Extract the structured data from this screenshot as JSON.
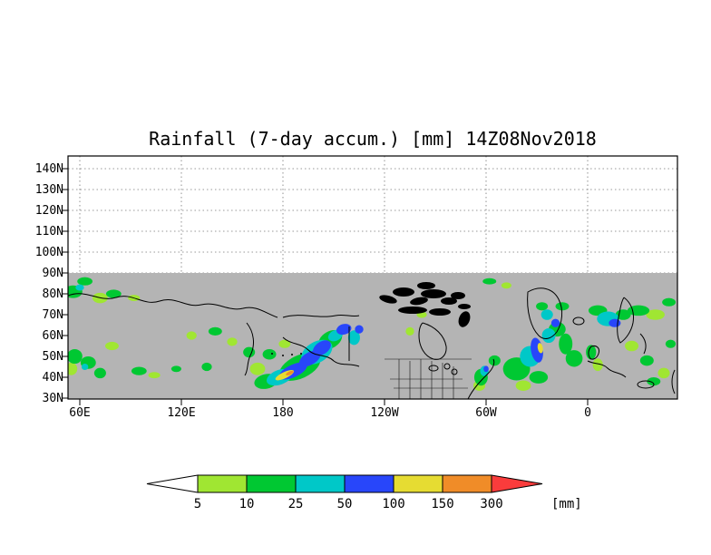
{
  "title": "Rainfall (7-day accum.) [mm] 14Z08Nov2018",
  "chart_data": {
    "type": "heatmap",
    "title": "Rainfall (7-day accum.) [mm] 14Z08Nov2018",
    "x_axis": {
      "ticks": [
        "60E",
        "120E",
        "180",
        "120W",
        "60W",
        "0"
      ]
    },
    "y_axis": {
      "ticks": [
        "140N",
        "130N",
        "120N",
        "110N",
        "100N",
        "90N",
        "80N",
        "70N",
        "60N",
        "50N",
        "40N",
        "30N"
      ]
    },
    "map": {
      "land_ocean_background": "#B4B4B4",
      "no_data_background": "#FFFFFF",
      "coastline_color": "#000000",
      "data_extent_lat": [
        30,
        90
      ]
    },
    "colorbar": {
      "levels": [
        5,
        10,
        25,
        50,
        100,
        150,
        300
      ],
      "unit": "[mm]",
      "colors": [
        "#FFFFFF",
        "#A0E632",
        "#00C832",
        "#00C8C8",
        "#2846FA",
        "#E6DC32",
        "#F08C28",
        "#FA3C3C"
      ]
    },
    "rain_patches": [
      {
        "lon": 56,
        "lat": 81,
        "w": 11,
        "h": 6,
        "level": 10
      },
      {
        "lon": 63,
        "lat": 86,
        "w": 9,
        "h": 4,
        "level": 10
      },
      {
        "lon": 60,
        "lat": 83,
        "w": 5,
        "h": 3,
        "level": 25
      },
      {
        "lon": 72,
        "lat": 78,
        "w": 9,
        "h": 5,
        "level": 5
      },
      {
        "lon": 80,
        "lat": 80,
        "w": 9,
        "h": 4,
        "level": 10
      },
      {
        "lon": 92,
        "lat": 78,
        "w": 7,
        "h": 3,
        "level": 5
      },
      {
        "lon": 57,
        "lat": 50,
        "w": 9,
        "h": 7,
        "level": 10
      },
      {
        "lon": 55,
        "lat": 44,
        "w": 7,
        "h": 6,
        "level": 5
      },
      {
        "lon": 65,
        "lat": 47,
        "w": 9,
        "h": 6,
        "level": 10
      },
      {
        "lon": 63,
        "lat": 45,
        "w": 4,
        "h": 3,
        "level": 25
      },
      {
        "lon": 72,
        "lat": 42,
        "w": 7,
        "h": 5,
        "level": 10
      },
      {
        "lon": 79,
        "lat": 55,
        "w": 8,
        "h": 4,
        "level": 5
      },
      {
        "lon": 95,
        "lat": 43,
        "w": 9,
        "h": 4,
        "level": 10
      },
      {
        "lon": 104,
        "lat": 41,
        "w": 7,
        "h": 3,
        "level": 5
      },
      {
        "lon": 117,
        "lat": 44,
        "w": 6,
        "h": 3,
        "level": 10
      },
      {
        "lon": 126,
        "lat": 60,
        "w": 6,
        "h": 4,
        "level": 5
      },
      {
        "lon": 140,
        "lat": 62,
        "w": 8,
        "h": 4,
        "level": 10
      },
      {
        "lon": 150,
        "lat": 57,
        "w": 6,
        "h": 4,
        "level": 5
      },
      {
        "lon": 135,
        "lat": 45,
        "w": 6,
        "h": 4,
        "level": 10
      },
      {
        "lon": 190,
        "lat": 45,
        "w": 26,
        "h": 11,
        "level": 10,
        "rot": -25
      },
      {
        "lon": 170,
        "lat": 38,
        "w": 14,
        "h": 7,
        "level": 10,
        "rot": -12
      },
      {
        "lon": 178,
        "lat": 40,
        "w": 16,
        "h": 7,
        "level": 25,
        "rot": -20
      },
      {
        "lon": 186,
        "lat": 43,
        "w": 18,
        "h": 6,
        "level": 50,
        "rot": -25
      },
      {
        "lon": 181,
        "lat": 41,
        "w": 12,
        "h": 3,
        "level": 100,
        "rot": -25
      },
      {
        "lon": 184,
        "lat": 42,
        "w": 5,
        "h": 1.6,
        "level": 150,
        "rot": -25
      },
      {
        "lon": 196,
        "lat": 49,
        "w": 14,
        "h": 6,
        "level": 50,
        "rot": -30
      },
      {
        "lon": 203,
        "lat": 54,
        "w": 12,
        "h": 6,
        "level": 50,
        "rot": -35
      },
      {
        "lon": 200,
        "lat": 52,
        "w": 20,
        "h": 10,
        "level": 25,
        "rot": -30
      },
      {
        "lon": 208,
        "lat": 58,
        "w": 15,
        "h": 8,
        "level": 10,
        "rot": -30
      },
      {
        "lon": 211,
        "lat": 60,
        "w": 9,
        "h": 5,
        "level": 25,
        "rot": -25
      },
      {
        "lon": 216,
        "lat": 63,
        "w": 9,
        "h": 5,
        "level": 50,
        "rot": -15
      },
      {
        "lon": 222,
        "lat": 59,
        "w": 7,
        "h": 7,
        "level": 25
      },
      {
        "lon": 225,
        "lat": 63,
        "w": 5,
        "h": 4,
        "level": 50
      },
      {
        "lon": 165,
        "lat": 44,
        "w": 9,
        "h": 6,
        "level": 5
      },
      {
        "lon": 172,
        "lat": 51,
        "w": 8,
        "h": 5,
        "level": 10
      },
      {
        "lon": 181,
        "lat": 56,
        "w": 7,
        "h": 4,
        "level": 5
      },
      {
        "lon": 160,
        "lat": 52,
        "w": 7,
        "h": 5,
        "level": 10
      },
      {
        "lon": 255,
        "lat": 62,
        "w": 5,
        "h": 4,
        "level": 5
      },
      {
        "lon": 262,
        "lat": 70,
        "w": 6,
        "h": 3,
        "level": 5
      },
      {
        "lon": 296,
        "lat": 36,
        "w": 7,
        "h": 5,
        "level": 5
      },
      {
        "lon": 297,
        "lat": 40,
        "w": 8,
        "h": 8,
        "level": 10
      },
      {
        "lon": 299,
        "lat": 43,
        "w": 5,
        "h": 5,
        "level": 25
      },
      {
        "lon": 300,
        "lat": 44,
        "w": 3,
        "h": 3,
        "level": 50
      },
      {
        "lon": 305,
        "lat": 48,
        "w": 7,
        "h": 5,
        "level": 10
      },
      {
        "lon": 318,
        "lat": 44,
        "w": 16,
        "h": 11,
        "level": 10
      },
      {
        "lon": 326,
        "lat": 50,
        "w": 12,
        "h": 10,
        "level": 25
      },
      {
        "lon": 330,
        "lat": 53,
        "w": 7,
        "h": 12,
        "level": 50,
        "rot": -10
      },
      {
        "lon": 332,
        "lat": 54,
        "w": 3,
        "h": 5,
        "level": 100,
        "rot": -10
      },
      {
        "lon": 337,
        "lat": 60,
        "w": 8,
        "h": 7,
        "level": 25
      },
      {
        "lon": 342,
        "lat": 63,
        "w": 10,
        "h": 7,
        "level": 10
      },
      {
        "lon": 347,
        "lat": 56,
        "w": 8,
        "h": 10,
        "level": 10
      },
      {
        "lon": 352,
        "lat": 49,
        "w": 10,
        "h": 8,
        "level": 10
      },
      {
        "lon": 331,
        "lat": 40,
        "w": 11,
        "h": 6,
        "level": 10
      },
      {
        "lon": 322,
        "lat": 36,
        "w": 9,
        "h": 5,
        "level": 5
      },
      {
        "lon": 336,
        "lat": 70,
        "w": 7,
        "h": 5,
        "level": 25
      },
      {
        "lon": 333,
        "lat": 74,
        "w": 7,
        "h": 4,
        "level": 10
      },
      {
        "lon": 341,
        "lat": 66,
        "w": 5,
        "h": 4,
        "level": 50
      },
      {
        "lon": 345,
        "lat": 74,
        "w": 8,
        "h": 4,
        "level": 10
      },
      {
        "lon": 366,
        "lat": 72,
        "w": 11,
        "h": 5,
        "level": 10
      },
      {
        "lon": 372,
        "lat": 68,
        "w": 13,
        "h": 7,
        "level": 25
      },
      {
        "lon": 376,
        "lat": 66,
        "w": 7,
        "h": 4,
        "level": 50
      },
      {
        "lon": 381,
        "lat": 70,
        "w": 9,
        "h": 5,
        "level": 10
      },
      {
        "lon": 390,
        "lat": 72,
        "w": 13,
        "h": 5,
        "level": 10
      },
      {
        "lon": 400,
        "lat": 70,
        "w": 11,
        "h": 5,
        "level": 5
      },
      {
        "lon": 362,
        "lat": 52,
        "w": 6,
        "h": 7,
        "level": 10
      },
      {
        "lon": 366,
        "lat": 46,
        "w": 6,
        "h": 6,
        "level": 5
      },
      {
        "lon": 386,
        "lat": 55,
        "w": 8,
        "h": 5,
        "level": 5
      },
      {
        "lon": 395,
        "lat": 48,
        "w": 8,
        "h": 5,
        "level": 10
      },
      {
        "lon": 405,
        "lat": 42,
        "w": 7,
        "h": 5,
        "level": 5
      },
      {
        "lon": 399,
        "lat": 38,
        "w": 8,
        "h": 4,
        "level": 10
      },
      {
        "lon": 409,
        "lat": 56,
        "w": 6,
        "h": 4,
        "level": 10
      },
      {
        "lon": 408,
        "lat": 76,
        "w": 8,
        "h": 4,
        "level": 10
      },
      {
        "lon": 302,
        "lat": 86,
        "w": 8,
        "h": 3,
        "level": 10
      },
      {
        "lon": 312,
        "lat": 84,
        "w": 6,
        "h": 3,
        "level": 5
      }
    ]
  }
}
